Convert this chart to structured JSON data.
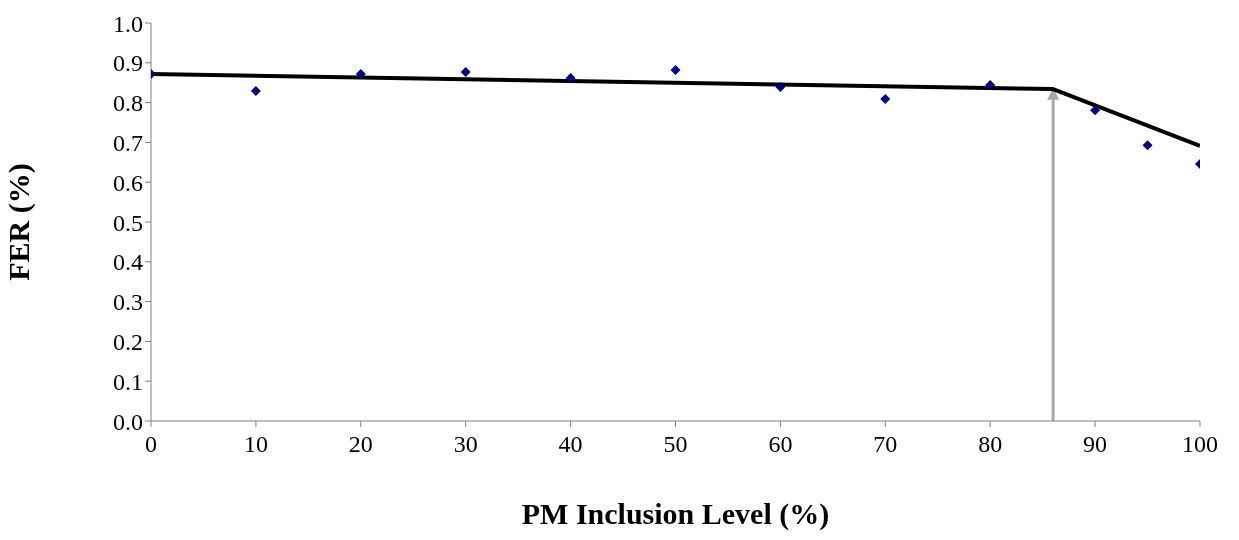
{
  "chart_data": {
    "type": "scatter",
    "xlabel": "PM Inclusion Level (%)",
    "ylabel": "FER (%)",
    "xlim": [
      0,
      100
    ],
    "xticks": [
      0,
      10,
      20,
      30,
      40,
      50,
      60,
      70,
      80,
      90,
      100
    ],
    "ylim": [
      0,
      1
    ],
    "yticks": [
      {
        "value": 0,
        "label": "0.0"
      },
      0.1,
      0.2,
      0.3,
      0.4,
      0.5,
      0.6,
      0.7,
      0.8,
      0.9,
      {
        "value": 1,
        "label": "1.0"
      }
    ],
    "series": [
      {
        "color": "#000080",
        "marker": "diamond",
        "x": [
          0,
          10,
          20,
          30,
          40,
          50,
          60,
          70,
          80,
          90,
          95,
          100
        ],
        "values": [
          0.872,
          0.829,
          0.872,
          0.877,
          0.862,
          0.882,
          0.839,
          0.809,
          0.844,
          0.781,
          0.693,
          0.646
        ]
      },
      {
        "type": "line",
        "color": "#000000",
        "marker": "none",
        "line_style": "solid",
        "x": [
          0,
          86,
          100
        ],
        "values": [
          0.872,
          0.834,
          0.691
        ]
      }
    ],
    "ref_lines": [
      {
        "axis": "x",
        "value": 86,
        "color": "#a6a6a6"
      }
    ]
  }
}
